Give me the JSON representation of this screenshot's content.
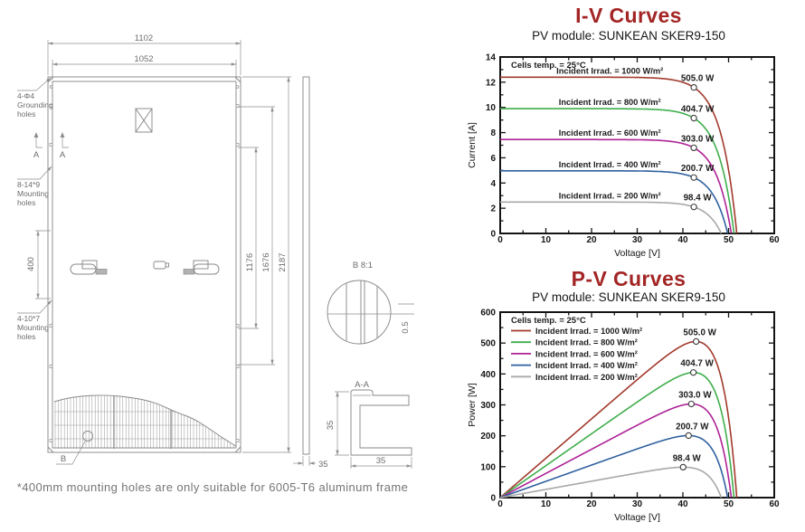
{
  "drawing": {
    "dim_width_outer": "1102",
    "dim_width_inner": "1052",
    "dim_height_total": "2187",
    "dim_height_1676": "1676",
    "dim_height_1176": "1176",
    "dim_mount_400": "400",
    "dim_side_35": "35",
    "dim_section_h_35": "35",
    "dim_section_w_35": "35",
    "dim_gap_05": "0.5",
    "grounding_holes": [
      "4-Φ4",
      "Grounding",
      "holes"
    ],
    "mounting_holes_top": [
      "8-14*9",
      "Mounting",
      "holes"
    ],
    "mounting_holes_bottom": [
      "4-10*7",
      "Mounting",
      "holes"
    ],
    "section_mark_left": "A",
    "section_mark_right": "A",
    "section_label": "A-A",
    "detail_callout": "B",
    "detail_label": "B  8:1",
    "footnote": "*400mm mounting holes are only suitable for 6005-T6 aluminum frame"
  },
  "chart_data": [
    {
      "type": "line",
      "mode": "iv",
      "title": "I-V Curves",
      "subtitle": "PV module: SUNKEAN SKER9-150",
      "xlabel": "Voltage [V]",
      "ylabel": "Current [A]",
      "xlim": [
        0,
        60
      ],
      "ylim": [
        0,
        14
      ],
      "xticks": [
        0,
        10,
        20,
        30,
        40,
        50,
        60
      ],
      "xminor": [
        5,
        15,
        25,
        35,
        45,
        55
      ],
      "yticks": [
        0,
        2,
        4,
        6,
        8,
        10,
        12,
        14
      ],
      "yminor": [
        1,
        3,
        5,
        7,
        9,
        11,
        13
      ],
      "note": "Cells temp. = 25°C",
      "grid": false,
      "legend_position": "none",
      "inline_label_x": 24,
      "marker_v": 42.4,
      "series": [
        {
          "name": "Incident Irrad. = 1000 W/m²",
          "color": "#a23a2c",
          "isc": 12.4,
          "voc": 51.8,
          "pmax": 505.0,
          "power_label": "505.0 W"
        },
        {
          "name": "Incident Irrad. = 800 W/m²",
          "color": "#3fae4c",
          "isc": 9.9,
          "voc": 51.2,
          "pmax": 404.7,
          "power_label": "404.7 W"
        },
        {
          "name": "Incident Irrad. = 600 W/m²",
          "color": "#ae2396",
          "isc": 7.45,
          "voc": 50.6,
          "pmax": 303.0,
          "power_label": "303.0 W"
        },
        {
          "name": "Incident Irrad. = 400 W/m²",
          "color": "#30619f",
          "isc": 4.97,
          "voc": 49.8,
          "pmax": 200.7,
          "power_label": "200.7 W"
        },
        {
          "name": "Incident Irrad. = 200 W/m²",
          "color": "#a8a8a8",
          "isc": 2.49,
          "voc": 48.4,
          "pmax": 98.4,
          "power_label": "98.4 W"
        }
      ]
    },
    {
      "type": "line",
      "mode": "pv",
      "title": "P-V Curves",
      "subtitle": "PV module: SUNKEAN SKER9-150",
      "xlabel": "Voltage [V]",
      "ylabel": "Power [W]",
      "xlim": [
        0,
        60
      ],
      "ylim": [
        0,
        600
      ],
      "xticks": [
        0,
        10,
        20,
        30,
        40,
        50,
        60
      ],
      "xminor": [
        5,
        15,
        25,
        35,
        45,
        55
      ],
      "yticks": [
        0,
        100,
        200,
        300,
        400,
        500,
        600
      ],
      "yminor": [
        50,
        150,
        250,
        350,
        450,
        550
      ],
      "note": "Cells temp. = 25°C",
      "grid": false,
      "legend_position": "top-left",
      "legend": true,
      "series": [
        {
          "name": "Incident Irrad. = 1000 W/m²",
          "color": "#a23a2c",
          "isc": 12.4,
          "voc": 51.8,
          "pmax": 505.0,
          "power_label": "505.0 W"
        },
        {
          "name": "Incident Irrad. = 800 W/m²",
          "color": "#3fae4c",
          "isc": 9.9,
          "voc": 51.2,
          "pmax": 404.7,
          "power_label": "404.7 W"
        },
        {
          "name": "Incident Irrad. = 600 W/m²",
          "color": "#ae2396",
          "isc": 7.45,
          "voc": 50.6,
          "pmax": 303.0,
          "power_label": "303.0 W"
        },
        {
          "name": "Incident Irrad. = 400 W/m²",
          "color": "#30619f",
          "isc": 4.97,
          "voc": 49.8,
          "pmax": 200.7,
          "power_label": "200.7 W"
        },
        {
          "name": "Incident Irrad. = 200 W/m²",
          "color": "#a8a8a8",
          "isc": 2.49,
          "voc": 48.4,
          "pmax": 98.4,
          "power_label": "98.4 W"
        }
      ]
    }
  ]
}
